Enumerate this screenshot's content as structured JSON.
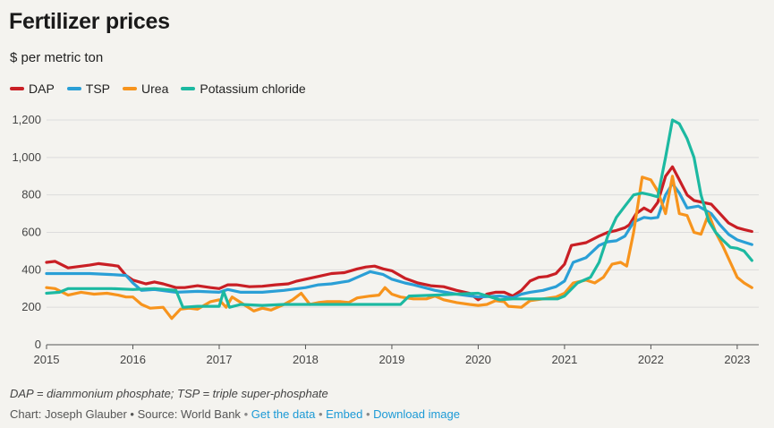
{
  "chart_data": {
    "type": "line",
    "title": "Fertilizer prices",
    "subtitle": "$ per metric ton",
    "xlabel": "",
    "ylabel": "",
    "ylim": [
      0,
      1200
    ],
    "xlim": [
      2015,
      2023.25
    ],
    "yticks": [
      0,
      200,
      400,
      600,
      800,
      1000,
      1200
    ],
    "ytick_labels": [
      "0",
      "200",
      "400",
      "600",
      "800",
      "1,000",
      "1,200"
    ],
    "xticks": [
      2015,
      2016,
      2017,
      2018,
      2019,
      2020,
      2021,
      2022,
      2023
    ],
    "xtick_labels": [
      "2015",
      "2016",
      "2017",
      "2018",
      "2019",
      "2020",
      "2021",
      "2022",
      "2023"
    ],
    "grid": true,
    "legend_position": "top-left",
    "series": [
      {
        "name": "DAP",
        "color": "#c91f25",
        "points": [
          [
            2015,
            440
          ],
          [
            2015.1,
            445
          ],
          [
            2015.25,
            410
          ],
          [
            2015.5,
            425
          ],
          [
            2015.6,
            433
          ],
          [
            2015.75,
            425
          ],
          [
            2015.83,
            420
          ],
          [
            2015.92,
            370
          ],
          [
            2016,
            345
          ],
          [
            2016.15,
            325
          ],
          [
            2016.25,
            335
          ],
          [
            2016.35,
            325
          ],
          [
            2016.5,
            305
          ],
          [
            2016.6,
            305
          ],
          [
            2016.75,
            315
          ],
          [
            2016.9,
            305
          ],
          [
            2017,
            300
          ],
          [
            2017.1,
            320
          ],
          [
            2017.2,
            320
          ],
          [
            2017.35,
            310
          ],
          [
            2017.5,
            312
          ],
          [
            2017.65,
            320
          ],
          [
            2017.8,
            325
          ],
          [
            2017.9,
            340
          ],
          [
            2018,
            350
          ],
          [
            2018.15,
            365
          ],
          [
            2018.3,
            380
          ],
          [
            2018.45,
            385
          ],
          [
            2018.6,
            405
          ],
          [
            2018.7,
            415
          ],
          [
            2018.8,
            420
          ],
          [
            2018.9,
            405
          ],
          [
            2019,
            395
          ],
          [
            2019.15,
            355
          ],
          [
            2019.3,
            330
          ],
          [
            2019.45,
            315
          ],
          [
            2019.6,
            310
          ],
          [
            2019.75,
            290
          ],
          [
            2019.9,
            275
          ],
          [
            2020,
            240
          ],
          [
            2020.1,
            270
          ],
          [
            2020.2,
            280
          ],
          [
            2020.3,
            280
          ],
          [
            2020.4,
            260
          ],
          [
            2020.5,
            290
          ],
          [
            2020.6,
            340
          ],
          [
            2020.7,
            360
          ],
          [
            2020.8,
            365
          ],
          [
            2020.9,
            380
          ],
          [
            2021,
            430
          ],
          [
            2021.08,
            530
          ],
          [
            2021.25,
            545
          ],
          [
            2021.4,
            580
          ],
          [
            2021.5,
            600
          ],
          [
            2021.6,
            610
          ],
          [
            2021.7,
            625
          ],
          [
            2021.75,
            640
          ],
          [
            2021.83,
            700
          ],
          [
            2021.92,
            730
          ],
          [
            2022,
            710
          ],
          [
            2022.08,
            760
          ],
          [
            2022.17,
            900
          ],
          [
            2022.25,
            950
          ],
          [
            2022.33,
            880
          ],
          [
            2022.42,
            800
          ],
          [
            2022.5,
            770
          ],
          [
            2022.6,
            760
          ],
          [
            2022.7,
            750
          ],
          [
            2022.8,
            700
          ],
          [
            2022.9,
            650
          ],
          [
            2023,
            625
          ],
          [
            2023.08,
            615
          ],
          [
            2023.17,
            605
          ]
        ]
      },
      {
        "name": "TSP",
        "color": "#2a9fd6",
        "points": [
          [
            2015,
            380
          ],
          [
            2015.25,
            380
          ],
          [
            2015.5,
            380
          ],
          [
            2015.75,
            375
          ],
          [
            2015.92,
            370
          ],
          [
            2016,
            330
          ],
          [
            2016.1,
            290
          ],
          [
            2016.25,
            295
          ],
          [
            2016.5,
            280
          ],
          [
            2016.75,
            285
          ],
          [
            2017,
            280
          ],
          [
            2017.1,
            295
          ],
          [
            2017.25,
            280
          ],
          [
            2017.5,
            280
          ],
          [
            2017.75,
            290
          ],
          [
            2018,
            305
          ],
          [
            2018.15,
            320
          ],
          [
            2018.3,
            325
          ],
          [
            2018.5,
            340
          ],
          [
            2018.6,
            360
          ],
          [
            2018.75,
            390
          ],
          [
            2018.9,
            375
          ],
          [
            2019,
            350
          ],
          [
            2019.15,
            330
          ],
          [
            2019.25,
            320
          ],
          [
            2019.5,
            290
          ],
          [
            2019.75,
            270
          ],
          [
            2020,
            255
          ],
          [
            2020.25,
            260
          ],
          [
            2020.4,
            250
          ],
          [
            2020.5,
            270
          ],
          [
            2020.6,
            280
          ],
          [
            2020.75,
            290
          ],
          [
            2020.9,
            310
          ],
          [
            2021,
            340
          ],
          [
            2021.1,
            440
          ],
          [
            2021.25,
            465
          ],
          [
            2021.4,
            530
          ],
          [
            2021.5,
            550
          ],
          [
            2021.6,
            555
          ],
          [
            2021.7,
            580
          ],
          [
            2021.8,
            655
          ],
          [
            2021.92,
            680
          ],
          [
            2022,
            675
          ],
          [
            2022.08,
            680
          ],
          [
            2022.17,
            800
          ],
          [
            2022.25,
            860
          ],
          [
            2022.33,
            810
          ],
          [
            2022.42,
            730
          ],
          [
            2022.55,
            740
          ],
          [
            2022.7,
            700
          ],
          [
            2022.8,
            640
          ],
          [
            2022.9,
            590
          ],
          [
            2023,
            560
          ],
          [
            2023.1,
            545
          ],
          [
            2023.17,
            535
          ]
        ]
      },
      {
        "name": "Urea",
        "color": "#f7941d",
        "points": [
          [
            2015,
            305
          ],
          [
            2015.1,
            300
          ],
          [
            2015.25,
            265
          ],
          [
            2015.4,
            280
          ],
          [
            2015.55,
            270
          ],
          [
            2015.7,
            275
          ],
          [
            2015.83,
            265
          ],
          [
            2015.92,
            255
          ],
          [
            2016,
            255
          ],
          [
            2016.1,
            215
          ],
          [
            2016.2,
            195
          ],
          [
            2016.35,
            200
          ],
          [
            2016.45,
            140
          ],
          [
            2016.55,
            190
          ],
          [
            2016.65,
            195
          ],
          [
            2016.75,
            190
          ],
          [
            2016.9,
            230
          ],
          [
            2017,
            240
          ],
          [
            2017.08,
            200
          ],
          [
            2017.15,
            255
          ],
          [
            2017.25,
            225
          ],
          [
            2017.4,
            180
          ],
          [
            2017.5,
            195
          ],
          [
            2017.6,
            185
          ],
          [
            2017.75,
            215
          ],
          [
            2017.85,
            240
          ],
          [
            2017.95,
            275
          ],
          [
            2018.05,
            215
          ],
          [
            2018.15,
            225
          ],
          [
            2018.25,
            230
          ],
          [
            2018.4,
            230
          ],
          [
            2018.5,
            225
          ],
          [
            2018.6,
            250
          ],
          [
            2018.75,
            260
          ],
          [
            2018.85,
            265
          ],
          [
            2018.92,
            305
          ],
          [
            2019,
            270
          ],
          [
            2019.1,
            255
          ],
          [
            2019.25,
            245
          ],
          [
            2019.4,
            245
          ],
          [
            2019.5,
            260
          ],
          [
            2019.6,
            240
          ],
          [
            2019.75,
            225
          ],
          [
            2019.9,
            215
          ],
          [
            2020,
            210
          ],
          [
            2020.1,
            215
          ],
          [
            2020.2,
            235
          ],
          [
            2020.3,
            230
          ],
          [
            2020.35,
            205
          ],
          [
            2020.5,
            200
          ],
          [
            2020.6,
            235
          ],
          [
            2020.75,
            245
          ],
          [
            2020.9,
            255
          ],
          [
            2021,
            275
          ],
          [
            2021.1,
            330
          ],
          [
            2021.25,
            345
          ],
          [
            2021.35,
            330
          ],
          [
            2021.45,
            360
          ],
          [
            2021.55,
            430
          ],
          [
            2021.65,
            440
          ],
          [
            2021.72,
            420
          ],
          [
            2021.8,
            600
          ],
          [
            2021.9,
            895
          ],
          [
            2022,
            880
          ],
          [
            2022.08,
            820
          ],
          [
            2022.17,
            700
          ],
          [
            2022.25,
            900
          ],
          [
            2022.33,
            700
          ],
          [
            2022.42,
            690
          ],
          [
            2022.5,
            600
          ],
          [
            2022.58,
            590
          ],
          [
            2022.67,
            700
          ],
          [
            2022.75,
            600
          ],
          [
            2022.83,
            530
          ],
          [
            2022.92,
            440
          ],
          [
            2023,
            360
          ],
          [
            2023.08,
            330
          ],
          [
            2023.17,
            305
          ]
        ]
      },
      {
        "name": "Potassium chloride",
        "color": "#1cb9a1",
        "points": [
          [
            2015,
            275
          ],
          [
            2015.15,
            280
          ],
          [
            2015.25,
            300
          ],
          [
            2015.5,
            300
          ],
          [
            2015.75,
            300
          ],
          [
            2016,
            295
          ],
          [
            2016.25,
            300
          ],
          [
            2016.5,
            290
          ],
          [
            2016.58,
            200
          ],
          [
            2016.75,
            205
          ],
          [
            2017,
            205
          ],
          [
            2017.05,
            285
          ],
          [
            2017.12,
            200
          ],
          [
            2017.25,
            215
          ],
          [
            2017.5,
            210
          ],
          [
            2017.75,
            215
          ],
          [
            2018,
            215
          ],
          [
            2018.5,
            215
          ],
          [
            2019,
            215
          ],
          [
            2019.1,
            215
          ],
          [
            2019.2,
            260
          ],
          [
            2019.5,
            265
          ],
          [
            2019.75,
            270
          ],
          [
            2020,
            275
          ],
          [
            2020.25,
            240
          ],
          [
            2020.4,
            245
          ],
          [
            2020.6,
            245
          ],
          [
            2020.75,
            245
          ],
          [
            2020.92,
            245
          ],
          [
            2021,
            260
          ],
          [
            2021.15,
            330
          ],
          [
            2021.3,
            360
          ],
          [
            2021.4,
            440
          ],
          [
            2021.5,
            580
          ],
          [
            2021.6,
            680
          ],
          [
            2021.7,
            740
          ],
          [
            2021.8,
            800
          ],
          [
            2021.9,
            810
          ],
          [
            2022,
            800
          ],
          [
            2022.08,
            790
          ],
          [
            2022.17,
            1000
          ],
          [
            2022.25,
            1200
          ],
          [
            2022.33,
            1180
          ],
          [
            2022.42,
            1100
          ],
          [
            2022.5,
            1000
          ],
          [
            2022.58,
            800
          ],
          [
            2022.67,
            660
          ],
          [
            2022.75,
            600
          ],
          [
            2022.83,
            560
          ],
          [
            2022.92,
            520
          ],
          [
            2023,
            515
          ],
          [
            2023.08,
            500
          ],
          [
            2023.17,
            450
          ]
        ]
      }
    ]
  },
  "footer": {
    "notes": "DAP = diammonium phosphate; TSP = triple super-phosphate",
    "credit": "Chart: Joseph Glauber • Source: World Bank",
    "separator": "•",
    "get_data": "Get the data",
    "embed": "Embed",
    "download": "Download image"
  }
}
